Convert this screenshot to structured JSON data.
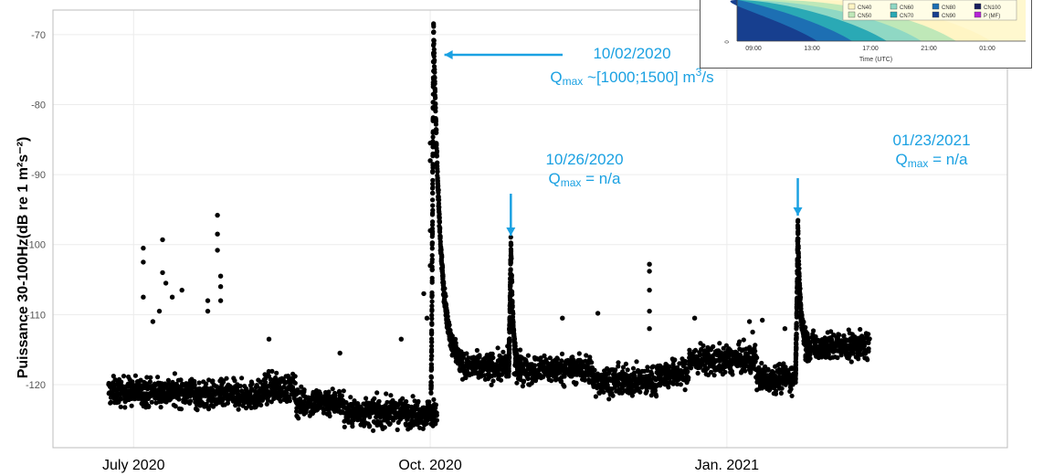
{
  "chart_data": {
    "type": "scatter",
    "ylabel": "Puissance 30-100Hz(dB re 1 m²s⁻²)",
    "xlabel": "",
    "x_ticks": [
      {
        "date": "2020-07-01",
        "label": "July 2020"
      },
      {
        "date": "2020-10-01",
        "label": "Oct. 2020"
      },
      {
        "date": "2021-01-01",
        "label": "Jan. 2021"
      }
    ],
    "y_ticks": [
      -70,
      -80,
      -90,
      -100,
      -110,
      -120
    ],
    "xlim": [
      "2020-06-06",
      "2021-03-29"
    ],
    "ylim": [
      -129,
      -66.5
    ],
    "grid": true,
    "marker_color": "#000000",
    "annotation_color": "#1ba1e2",
    "baseline_segments": [
      {
        "start": "2020-06-23",
        "end": "2020-07-20",
        "level": -121.0
      },
      {
        "start": "2020-07-20",
        "end": "2020-08-10",
        "level": -121.5
      },
      {
        "start": "2020-08-10",
        "end": "2020-08-20",
        "level": -120.5
      },
      {
        "start": "2020-08-20",
        "end": "2020-09-04",
        "level": -122.5
      },
      {
        "start": "2020-09-04",
        "end": "2020-10-03",
        "level": -124.0
      },
      {
        "start": "2020-10-11",
        "end": "2020-10-25",
        "level": -117.5
      },
      {
        "start": "2020-10-27",
        "end": "2020-11-20",
        "level": -117.8
      },
      {
        "start": "2020-11-20",
        "end": "2020-12-10",
        "level": -119.5
      },
      {
        "start": "2020-12-10",
        "end": "2020-12-20",
        "level": -118.5
      },
      {
        "start": "2020-12-20",
        "end": "2021-01-10",
        "level": -116.5
      },
      {
        "start": "2021-01-10",
        "end": "2021-01-22",
        "level": -119.0
      },
      {
        "start": "2021-01-25",
        "end": "2021-02-14",
        "level": -114.5
      }
    ],
    "flood_events": [
      {
        "peak_date": "2020-10-02",
        "peak_value": -68.5,
        "pre_level": -121.0,
        "post_level": -117.5,
        "decay_days": 9
      },
      {
        "peak_date": "2020-10-26",
        "peak_value": -99.8,
        "pre_level": -118.5,
        "post_level": -118.0,
        "decay_days": 3
      },
      {
        "peak_date": "2021-01-23",
        "peak_value": -96.8,
        "pre_level": -119.0,
        "post_level": -114.0,
        "decay_days": 3
      }
    ],
    "outliers": [
      {
        "date": "2020-07-04",
        "value": -100.5
      },
      {
        "date": "2020-07-04",
        "value": -102.5
      },
      {
        "date": "2020-07-04",
        "value": -107.5
      },
      {
        "date": "2020-07-07",
        "value": -111.0
      },
      {
        "date": "2020-07-09",
        "value": -109.5
      },
      {
        "date": "2020-07-10",
        "value": -99.3
      },
      {
        "date": "2020-07-10",
        "value": -104.0
      },
      {
        "date": "2020-07-11",
        "value": -105.5
      },
      {
        "date": "2020-07-13",
        "value": -107.5
      },
      {
        "date": "2020-07-16",
        "value": -106.5
      },
      {
        "date": "2020-07-24",
        "value": -108.0
      },
      {
        "date": "2020-07-24",
        "value": -109.5
      },
      {
        "date": "2020-07-27",
        "value": -95.8
      },
      {
        "date": "2020-07-27",
        "value": -98.5
      },
      {
        "date": "2020-07-27",
        "value": -100.8
      },
      {
        "date": "2020-07-28",
        "value": -104.5
      },
      {
        "date": "2020-07-28",
        "value": -106.0
      },
      {
        "date": "2020-07-28",
        "value": -108.0
      },
      {
        "date": "2020-08-12",
        "value": -113.5
      },
      {
        "date": "2020-09-03",
        "value": -115.5
      },
      {
        "date": "2020-09-22",
        "value": -113.5
      },
      {
        "date": "2020-09-29",
        "value": -107.0
      },
      {
        "date": "2020-09-30",
        "value": -110.5
      },
      {
        "date": "2020-10-01",
        "value": -85.5
      },
      {
        "date": "2020-10-01",
        "value": -88.0
      },
      {
        "date": "2020-10-01",
        "value": -98.0
      },
      {
        "date": "2020-10-01",
        "value": -103.0
      },
      {
        "date": "2020-10-25",
        "value": -114.5
      },
      {
        "date": "2020-11-11",
        "value": -110.5
      },
      {
        "date": "2020-11-22",
        "value": -109.8
      },
      {
        "date": "2020-12-08",
        "value": -102.8
      },
      {
        "date": "2020-12-08",
        "value": -103.8
      },
      {
        "date": "2020-12-08",
        "value": -106.5
      },
      {
        "date": "2020-12-08",
        "value": -109.5
      },
      {
        "date": "2020-12-08",
        "value": -112.0
      },
      {
        "date": "2020-12-22",
        "value": -110.5
      },
      {
        "date": "2021-01-08",
        "value": -111.0
      },
      {
        "date": "2021-01-09",
        "value": -112.5
      },
      {
        "date": "2021-01-12",
        "value": -110.8
      },
      {
        "date": "2021-01-19",
        "value": -112.0
      }
    ],
    "annotations": [
      {
        "date": "10/02/2020",
        "qmax_value": " ~[1000;1500] m",
        "unit_exp": "3",
        "unit_tail": "/s"
      },
      {
        "date": "10/26/2020",
        "qmax_value": " = n/a"
      },
      {
        "date": "01/23/2021",
        "qmax_value": " = n/a"
      }
    ],
    "qmax_symbol": "Q",
    "qmax_sub": "max"
  },
  "inset": {
    "x_ticks": [
      "09:00",
      "13:00",
      "17:00",
      "21:00",
      "01:00"
    ],
    "xlabel": "Time (UTC)",
    "y_tick": "0",
    "legend": [
      {
        "label": "CN40",
        "color": "#fff5c4"
      },
      {
        "label": "CN50",
        "color": "#bfe8b8"
      },
      {
        "label": "CN60",
        "color": "#8fd8c4"
      },
      {
        "label": "CN70",
        "color": "#2aa9b5"
      },
      {
        "label": "CN80",
        "color": "#1d6fb3"
      },
      {
        "label": "CN90",
        "color": "#173f8f"
      },
      {
        "label": "CN100",
        "color": "#1a1f5e"
      },
      {
        "label": "P (MF)",
        "color": "#b624d6"
      }
    ],
    "fill_colors": [
      "#fff8cf",
      "#fff5c4",
      "#bfe8b8",
      "#8fd8c4",
      "#2aa9b5",
      "#1d6fb3",
      "#173f8f"
    ]
  }
}
